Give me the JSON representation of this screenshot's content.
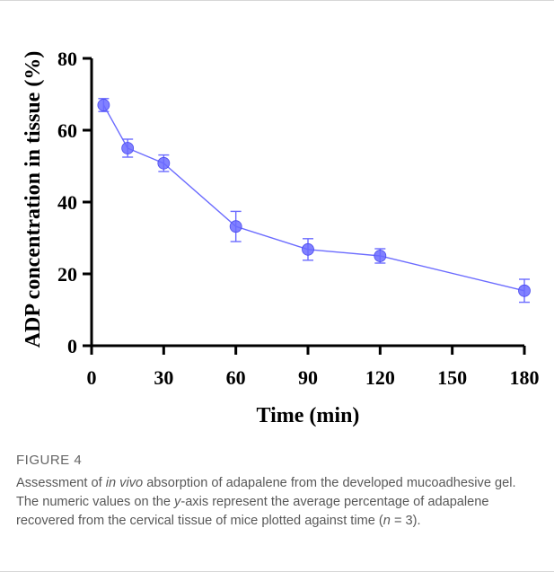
{
  "chart_data": {
    "type": "line",
    "xlabel": "Time (min)",
    "ylabel": "ADP concentration in tissue (%)",
    "xlim": [
      0,
      180
    ],
    "ylim": [
      0,
      80
    ],
    "xticks": [
      0,
      30,
      60,
      90,
      120,
      150,
      180
    ],
    "yticks": [
      0,
      20,
      40,
      60,
      80
    ],
    "x_tick_labels": [
      "0",
      "30",
      "60",
      "90",
      "120",
      "150",
      "180"
    ],
    "y_tick_labels": [
      "0",
      "20",
      "40",
      "60",
      "80"
    ],
    "grid": false,
    "series": [
      {
        "x": [
          5,
          15,
          30,
          60,
          90,
          120,
          180
        ],
        "y": [
          67,
          55,
          50.8,
          33.2,
          26.8,
          25,
          15.3
        ],
        "error": [
          1.8,
          2.5,
          2.3,
          4.2,
          3,
          2,
          3.2
        ],
        "color": "#6b6bff",
        "marker": "circle"
      }
    ]
  },
  "caption": {
    "label": "FIGURE 4",
    "parts": [
      {
        "text": "Assessment of ",
        "italic": false
      },
      {
        "text": "in vivo",
        "italic": true
      },
      {
        "text": " absorption of adapalene from the developed mucoadhesive gel. The numeric values on the ",
        "italic": false
      },
      {
        "text": "y",
        "italic": true
      },
      {
        "text": "-axis represent the average percentage of adapalene recovered from the cervical tissue of mice plotted against time (",
        "italic": false
      },
      {
        "text": "n",
        "italic": true
      },
      {
        "text": " = 3).",
        "italic": false
      }
    ]
  }
}
